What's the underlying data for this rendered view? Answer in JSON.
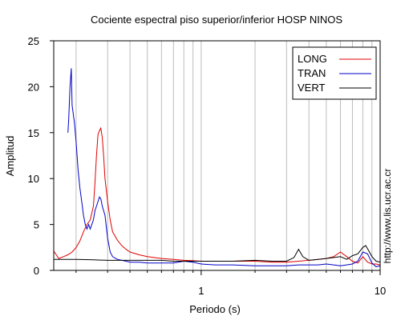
{
  "chart_data": {
    "type": "line",
    "title": "Cociente espectral piso superior/inferior  HOSP NINOS",
    "xlabel": "Periodo (s)",
    "ylabel": "Amplitud",
    "x_scale": "log",
    "xlim": [
      0.15,
      10
    ],
    "ylim": [
      0,
      25
    ],
    "x_tick_labels": [
      "1",
      "10"
    ],
    "x_tick_values": [
      1,
      10
    ],
    "y_tick_values": [
      0,
      5,
      10,
      15,
      20,
      25
    ],
    "y_tick_labels": [
      "0",
      "5",
      "10",
      "15",
      "20",
      "25"
    ],
    "grid": "vertical",
    "legend_position": "top-right",
    "side_text": "http://www.lis.ucr.ac.cr",
    "series": [
      {
        "name": "LONG",
        "color": "#e00000",
        "x": [
          0.15,
          0.16,
          0.17,
          0.18,
          0.19,
          0.2,
          0.21,
          0.22,
          0.23,
          0.24,
          0.25,
          0.255,
          0.26,
          0.265,
          0.27,
          0.275,
          0.28,
          0.285,
          0.29,
          0.3,
          0.31,
          0.32,
          0.34,
          0.36,
          0.38,
          0.4,
          0.45,
          0.5,
          0.6,
          0.7,
          0.8,
          0.9,
          1.0,
          1.2,
          1.5,
          2.0,
          2.5,
          3.0,
          3.5,
          4.0,
          4.5,
          5.0,
          5.5,
          6.0,
          6.5,
          7.0,
          7.5,
          8.0,
          8.5,
          9.0,
          9.5,
          10
        ],
        "y": [
          2.1,
          1.3,
          1.5,
          1.7,
          2.0,
          2.5,
          3.2,
          4.2,
          5.0,
          5.5,
          7.0,
          9.5,
          12.5,
          14.8,
          15.2,
          15.5,
          14.5,
          12.5,
          10.0,
          7.5,
          5.5,
          4.2,
          3.3,
          2.7,
          2.3,
          2.0,
          1.7,
          1.5,
          1.3,
          1.2,
          1.1,
          1.05,
          1.0,
          1.0,
          1.0,
          1.0,
          0.9,
          0.9,
          1.0,
          1.1,
          1.2,
          1.3,
          1.5,
          2.0,
          1.5,
          1.0,
          0.8,
          1.5,
          0.9,
          0.7,
          0.7,
          0.6
        ]
      },
      {
        "name": "TRAN",
        "color": "#0000c8",
        "x": [
          0.18,
          0.182,
          0.185,
          0.188,
          0.19,
          0.193,
          0.196,
          0.2,
          0.205,
          0.21,
          0.215,
          0.22,
          0.225,
          0.23,
          0.235,
          0.24,
          0.245,
          0.25,
          0.255,
          0.26,
          0.265,
          0.27,
          0.275,
          0.28,
          0.285,
          0.29,
          0.3,
          0.31,
          0.32,
          0.34,
          0.36,
          0.38,
          0.4,
          0.45,
          0.5,
          0.6,
          0.7,
          0.8,
          0.9,
          1.0,
          1.2,
          1.5,
          2.0,
          2.5,
          3.0,
          3.5,
          4.0,
          4.5,
          5.0,
          5.5,
          6.0,
          6.5,
          7.0,
          7.5,
          8.0,
          8.5,
          9.0,
          9.5,
          10
        ],
        "y": [
          15.0,
          16.5,
          20.0,
          22.0,
          18.0,
          17.0,
          16.0,
          14.0,
          11.0,
          9.0,
          7.5,
          6.0,
          5.0,
          4.5,
          5.0,
          4.5,
          5.0,
          5.5,
          6.5,
          7.0,
          7.5,
          8.0,
          7.8,
          7.0,
          6.5,
          6.0,
          3.5,
          2.0,
          1.5,
          1.2,
          1.1,
          1.0,
          0.9,
          0.9,
          0.8,
          0.8,
          0.8,
          1.0,
          0.9,
          0.7,
          0.6,
          0.6,
          0.5,
          0.5,
          0.5,
          0.6,
          0.6,
          0.6,
          0.7,
          0.6,
          0.5,
          0.6,
          0.7,
          1.0,
          2.0,
          1.8,
          0.8,
          0.4,
          0.5
        ]
      },
      {
        "name": "VERT",
        "color": "#000000",
        "x": [
          0.15,
          0.17,
          0.2,
          0.25,
          0.3,
          0.4,
          0.5,
          0.6,
          0.7,
          0.8,
          0.9,
          1.0,
          1.2,
          1.5,
          2.0,
          2.5,
          3.0,
          3.3,
          3.5,
          3.7,
          4.0,
          4.5,
          5.0,
          5.5,
          6.0,
          6.5,
          7.0,
          7.5,
          8.0,
          8.3,
          8.6,
          9.0,
          9.5,
          10
        ],
        "y": [
          1.2,
          1.2,
          1.2,
          1.15,
          1.1,
          1.1,
          1.1,
          1.1,
          1.0,
          1.0,
          1.0,
          1.0,
          1.0,
          1.0,
          1.1,
          1.0,
          1.0,
          1.4,
          2.3,
          1.5,
          1.1,
          1.2,
          1.3,
          1.4,
          1.5,
          1.2,
          1.6,
          1.8,
          2.5,
          2.7,
          2.2,
          1.5,
          1.0,
          0.9
        ]
      }
    ]
  }
}
